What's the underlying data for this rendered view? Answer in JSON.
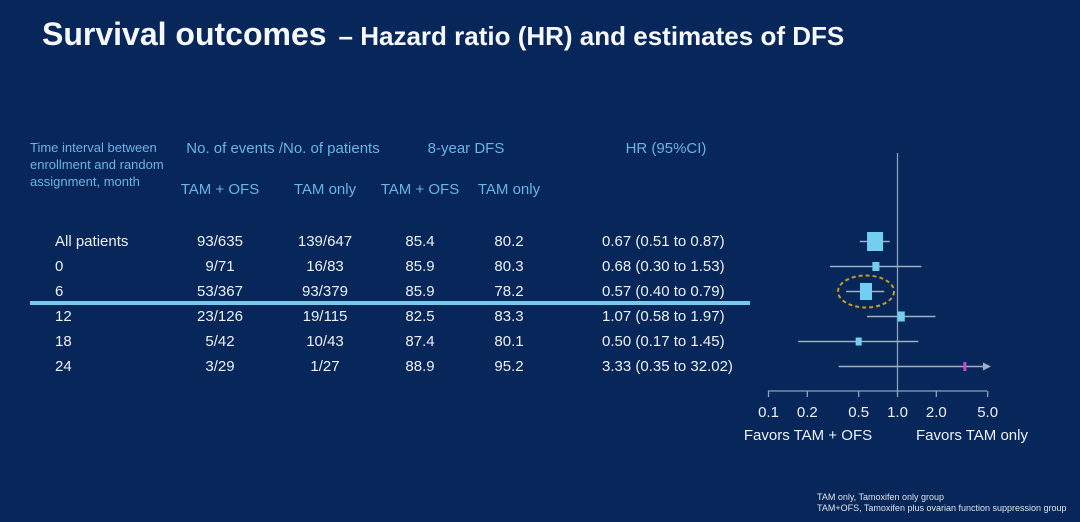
{
  "slide": {
    "title_main": "Survival outcomes",
    "title_sub": "– Hazard ratio (HR) and estimates of DFS"
  },
  "table": {
    "row_axis_header": "Time interval between enrollment and random assignment, month",
    "group_headers": {
      "events": "No. of events /No. of patients",
      "dfs": "8-year DFS",
      "hr": "HR (95%CI)"
    },
    "sub_headers": [
      "TAM + OFS",
      "TAM only",
      "TAM + OFS",
      "TAM only"
    ],
    "rows": [
      {
        "label": "All patients",
        "events_tam_ofs": "93/635",
        "events_tam_only": "139/647",
        "dfs_tam_ofs": "85.4",
        "dfs_tam_only": "80.2",
        "hr_ci": "0.67 (0.51 to 0.87)"
      },
      {
        "label": "0",
        "events_tam_ofs": "9/71",
        "events_tam_only": "16/83",
        "dfs_tam_ofs": "85.9",
        "dfs_tam_only": "80.3",
        "hr_ci": "0.68 (0.30 to 1.53)"
      },
      {
        "label": "6",
        "events_tam_ofs": "53/367",
        "events_tam_only": "93/379",
        "dfs_tam_ofs": "85.9",
        "dfs_tam_only": "78.2",
        "hr_ci": "0.57 (0.40 to 0.79)"
      },
      {
        "label": "12",
        "events_tam_ofs": "23/126",
        "events_tam_only": "19/115",
        "dfs_tam_ofs": "82.5",
        "dfs_tam_only": "83.3",
        "hr_ci": "1.07 (0.58 to 1.97)"
      },
      {
        "label": "18",
        "events_tam_ofs": "5/42",
        "events_tam_only": "10/43",
        "dfs_tam_ofs": "87.4",
        "dfs_tam_only": "80.1",
        "hr_ci": "0.50 (0.17 to 1.45)"
      },
      {
        "label": "24",
        "events_tam_ofs": "3/29",
        "events_tam_only": "1/27",
        "dfs_tam_ofs": "88.9",
        "dfs_tam_only": "95.2",
        "hr_ci": "3.33 (0.35 to 32.02)"
      }
    ],
    "highlighted_row": "6"
  },
  "chart_data": {
    "type": "scatter",
    "subtype": "forest-plot",
    "x_scale": "log10",
    "x_ticks": [
      0.1,
      0.2,
      0.5,
      1.0,
      2.0,
      5.0
    ],
    "x_tick_labels": [
      "0.1",
      "0.2",
      "0.5",
      "1.0",
      "2.0",
      "5.0"
    ],
    "reference_line_x": 1.0,
    "axis_label_left": "Favors TAM + OFS",
    "axis_label_right": "Favors TAM only",
    "points": [
      {
        "label": "All patients",
        "hr": 0.67,
        "lo": 0.51,
        "hi": 0.87,
        "marker_w": 16,
        "marker_h": 19
      },
      {
        "label": "0",
        "hr": 0.68,
        "lo": 0.3,
        "hi": 1.53,
        "marker_w": 7,
        "marker_h": 9
      },
      {
        "label": "6",
        "hr": 0.57,
        "lo": 0.4,
        "hi": 0.79,
        "marker_w": 12,
        "marker_h": 17,
        "circled": true
      },
      {
        "label": "12",
        "hr": 1.07,
        "lo": 0.58,
        "hi": 1.97,
        "marker_w": 7,
        "marker_h": 10
      },
      {
        "label": "18",
        "hr": 0.5,
        "lo": 0.17,
        "hi": 1.45,
        "marker_w": 6,
        "marker_h": 8
      },
      {
        "label": "24",
        "hr": 3.33,
        "lo": 0.35,
        "hi": 32.02,
        "marker_w": 3,
        "marker_h": 9,
        "off_scale_right": true,
        "marker_color": "#c94ccc"
      }
    ]
  },
  "footnotes": [
    "TAM only, Tamoxifen only group",
    "TAM+OFS, Tamoxifen plus ovarian function suppression group"
  ],
  "colors": {
    "background": "#07265a",
    "header_text": "#6ab4e6",
    "body_text": "#eef0f3",
    "highlight_line": "#7cc8ea",
    "marker_fill": "#72cff0",
    "marker_fill_alt": "#c94ccc",
    "ci_line": "#a3aec2",
    "axis_line": "#8fa1bd",
    "ellipse": "#c99b26"
  }
}
